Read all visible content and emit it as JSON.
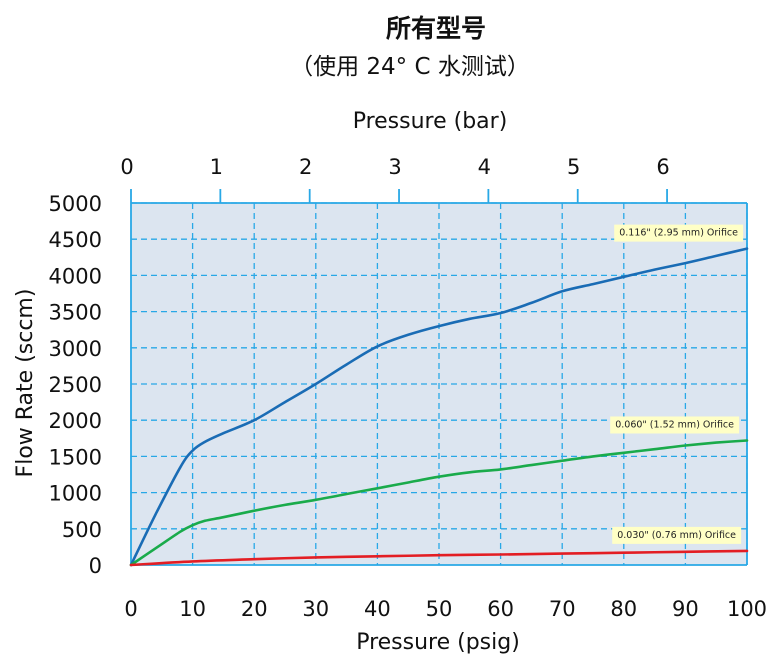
{
  "chart_data": {
    "type": "line",
    "title": "所有型号",
    "subtitle": "（使用 24° C 水测试）",
    "xlabel": "Pressure (psig)",
    "x2label": "Pressure (bar)",
    "ylabel": "Flow Rate (sccm)",
    "xlim": [
      0,
      100
    ],
    "ylim": [
      0,
      5000
    ],
    "x_ticks": [
      0,
      10,
      20,
      30,
      40,
      50,
      60,
      70,
      80,
      90,
      100
    ],
    "y_ticks": [
      0,
      500,
      1000,
      1500,
      2000,
      2500,
      3000,
      3500,
      4000,
      4500,
      5000
    ],
    "x2_ticks": [
      0,
      1,
      2,
      3,
      4,
      5,
      6
    ],
    "x2_psig_per_unit": 14.5038,
    "grid": true,
    "background_color": "#dce5f0",
    "grid_color": "#29a8e6",
    "series": [
      {
        "name": "0.116\" (2.95 mm) Orifice",
        "color": "#1a6cb5",
        "x": [
          0,
          4,
          8,
          10,
          12,
          15,
          20,
          25,
          30,
          35,
          40,
          45,
          50,
          55,
          60,
          65,
          70,
          75,
          80,
          85,
          90,
          95,
          100
        ],
        "y": [
          0,
          700,
          1350,
          1580,
          1700,
          1820,
          2000,
          2250,
          2500,
          2770,
          3020,
          3180,
          3300,
          3400,
          3480,
          3620,
          3780,
          3880,
          3980,
          4080,
          4170,
          4270,
          4370
        ]
      },
      {
        "name": "0.060\" (1.52 mm) Orifice",
        "color": "#1aab4b",
        "x": [
          0,
          4,
          8,
          10,
          12,
          15,
          20,
          25,
          30,
          35,
          40,
          45,
          50,
          55,
          60,
          65,
          70,
          75,
          80,
          85,
          90,
          95,
          100
        ],
        "y": [
          0,
          230,
          460,
          550,
          610,
          660,
          750,
          830,
          900,
          980,
          1060,
          1140,
          1220,
          1280,
          1320,
          1380,
          1440,
          1500,
          1550,
          1600,
          1650,
          1690,
          1720
        ]
      },
      {
        "name": "0.030\" (0.76 mm) Orifice",
        "color": "#e31e24",
        "x": [
          0,
          10,
          20,
          30,
          40,
          50,
          60,
          70,
          80,
          90,
          100
        ],
        "y": [
          0,
          50,
          80,
          105,
          120,
          135,
          145,
          158,
          170,
          182,
          195
        ]
      }
    ]
  }
}
